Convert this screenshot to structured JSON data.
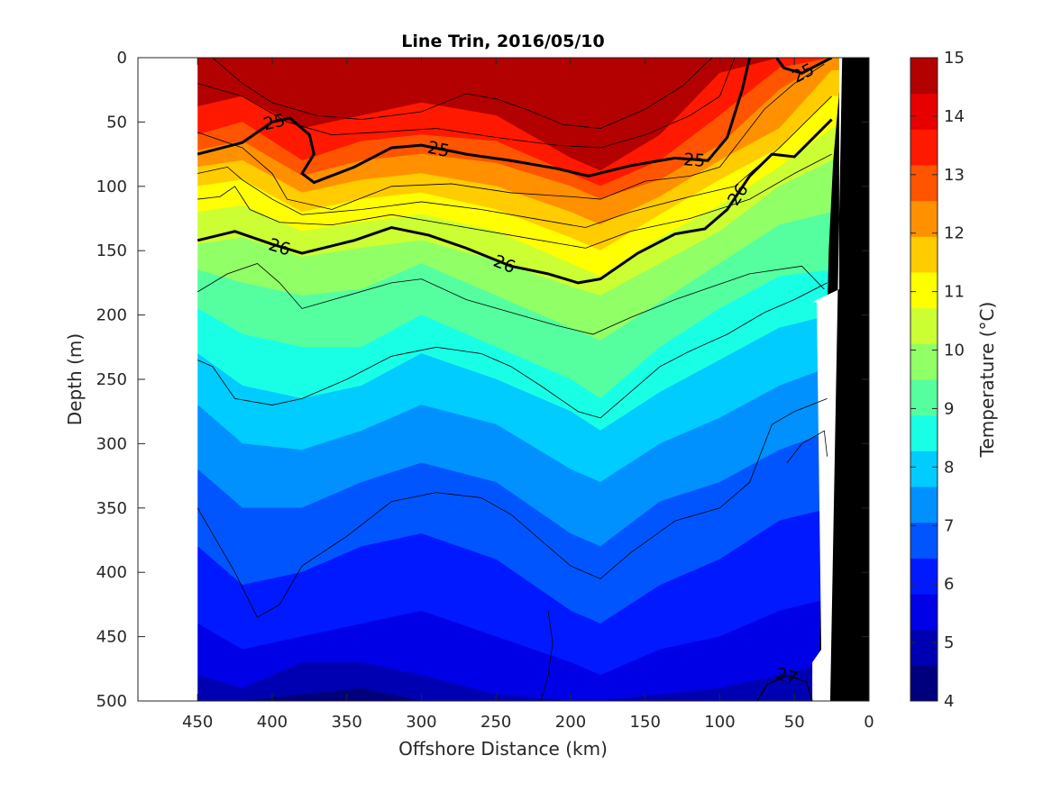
{
  "chart_data": {
    "type": "heatmap",
    "title": "Line Trin, 2016/05/10",
    "xlabel": "Offshore Distance (km)",
    "ylabel": "Depth (m)",
    "xlim": [
      490,
      0
    ],
    "ylim": [
      0,
      500
    ],
    "x_reversed": true,
    "y_reversed": true,
    "xticks": [
      450,
      400,
      350,
      300,
      250,
      200,
      150,
      100,
      50,
      0
    ],
    "yticks": [
      0,
      50,
      100,
      150,
      200,
      250,
      300,
      350,
      400,
      450,
      500
    ],
    "colorbar": {
      "label": "Temperature (°C)",
      "range": [
        4,
        15
      ],
      "ticks": [
        15,
        14,
        13,
        12,
        11,
        10,
        9,
        8,
        7,
        6,
        5,
        4
      ],
      "colors": [
        "#00007f",
        "#0000b3",
        "#0000e6",
        "#0019ff",
        "#0055ff",
        "#0091ff",
        "#00ccff",
        "#19ffe6",
        "#55ff9f",
        "#91ff66",
        "#ccff33",
        "#ffff00",
        "#ffcc00",
        "#ff9100",
        "#ff5500",
        "#ff1900",
        "#e60000",
        "#b30000"
      ]
    },
    "temperature_profiles": {
      "distance_km": [
        450,
        420,
        380,
        340,
        300,
        250,
        200,
        180,
        140,
        100,
        60,
        25
      ],
      "thresholds_c": [
        14,
        13,
        12,
        11.5,
        11,
        10.5,
        10,
        9.5,
        9,
        8.5,
        8,
        7.5,
        7,
        6.5,
        6,
        5.5,
        5,
        4.5
      ],
      "depth_of_isotherm_m": [
        [
          0,
          0,
          0,
          0,
          0,
          0,
          45,
          50,
          0,
          0,
          0,
          0
        ],
        [
          12,
          8,
          25,
          18,
          10,
          15,
          62,
          70,
          25,
          0,
          0,
          0
        ],
        [
          38,
          30,
          55,
          45,
          35,
          45,
          78,
          88,
          60,
          12,
          0,
          0
        ],
        [
          60,
          50,
          80,
          65,
          60,
          65,
          90,
          100,
          80,
          45,
          8,
          0
        ],
        [
          72,
          65,
          92,
          80,
          75,
          82,
          100,
          110,
          95,
          68,
          25,
          0
        ],
        [
          85,
          80,
          105,
          95,
          90,
          100,
          120,
          130,
          108,
          80,
          55,
          10
        ],
        [
          100,
          95,
          120,
          110,
          105,
          118,
          140,
          150,
          122,
          95,
          70,
          30
        ],
        [
          120,
          115,
          135,
          128,
          122,
          135,
          160,
          170,
          140,
          115,
          85,
          55
        ],
        [
          145,
          140,
          155,
          148,
          142,
          158,
          178,
          185,
          160,
          135,
          100,
          80
        ],
        [
          165,
          175,
          185,
          180,
          160,
          185,
          210,
          220,
          190,
          160,
          130,
          120
        ],
        [
          195,
          215,
          225,
          225,
          200,
          225,
          250,
          265,
          225,
          195,
          170,
          165
        ],
        [
          230,
          255,
          265,
          255,
          230,
          250,
          275,
          290,
          260,
          235,
          210,
          200
        ],
        [
          270,
          300,
          305,
          290,
          270,
          285,
          320,
          330,
          300,
          280,
          255,
          240
        ],
        [
          320,
          350,
          350,
          330,
          315,
          330,
          370,
          380,
          345,
          330,
          305,
          290
        ],
        [
          380,
          410,
          400,
          380,
          370,
          390,
          430,
          440,
          410,
          390,
          360,
          350
        ],
        [
          440,
          460,
          450,
          440,
          430,
          450,
          470,
          480,
          460,
          450,
          430,
          420
        ],
        [
          480,
          490,
          470,
          470,
          480,
          495,
          500,
          500,
          495,
          490,
          480,
          470
        ],
        [
          500,
          500,
          495,
          490,
          500,
          500,
          500,
          500,
          500,
          500,
          500,
          500
        ]
      ]
    },
    "density_contours": [
      {
        "label": "25",
        "bold": true,
        "points": [
          [
            450,
            75
          ],
          [
            420,
            66
          ],
          [
            400,
            50
          ],
          [
            388,
            47
          ],
          [
            375,
            60
          ],
          [
            372,
            75
          ],
          [
            380,
            90
          ],
          [
            372,
            97
          ],
          [
            345,
            85
          ],
          [
            320,
            70
          ],
          [
            300,
            68
          ],
          [
            270,
            75
          ],
          [
            240,
            80
          ],
          [
            210,
            86
          ],
          [
            188,
            92
          ],
          [
            160,
            84
          ],
          [
            130,
            78
          ],
          [
            108,
            80
          ],
          [
            95,
            62
          ],
          [
            85,
            25
          ],
          [
            80,
            0
          ]
        ]
      },
      {
        "label": "25",
        "bold": true,
        "points": [
          [
            62,
            0
          ],
          [
            57,
            8
          ],
          [
            45,
            12
          ],
          [
            25,
            0
          ]
        ]
      },
      {
        "label": "26",
        "bold": true,
        "points": [
          [
            450,
            142
          ],
          [
            425,
            135
          ],
          [
            400,
            145
          ],
          [
            380,
            152
          ],
          [
            345,
            142
          ],
          [
            320,
            132
          ],
          [
            295,
            138
          ],
          [
            270,
            148
          ],
          [
            240,
            162
          ],
          [
            215,
            168
          ],
          [
            195,
            175
          ],
          [
            180,
            172
          ],
          [
            155,
            152
          ],
          [
            130,
            137
          ],
          [
            110,
            133
          ],
          [
            95,
            118
          ],
          [
            80,
            92
          ],
          [
            65,
            75
          ],
          [
            50,
            77
          ],
          [
            25,
            48
          ]
        ]
      },
      {
        "label": "27",
        "bold": false,
        "points": [
          [
            75,
            500
          ],
          [
            68,
            487
          ],
          [
            55,
            480
          ],
          [
            42,
            485
          ],
          [
            38,
            500
          ]
        ]
      }
    ],
    "thin_contours": [
      [
        [
          440,
          0
        ],
        [
          420,
          20
        ],
        [
          400,
          35
        ],
        [
          370,
          45
        ],
        [
          340,
          48
        ],
        [
          300,
          42
        ],
        [
          270,
          28
        ],
        [
          250,
          32
        ],
        [
          230,
          40
        ],
        [
          205,
          52
        ],
        [
          180,
          55
        ],
        [
          150,
          40
        ],
        [
          125,
          22
        ],
        [
          110,
          5
        ],
        [
          105,
          0
        ]
      ],
      [
        [
          450,
          20
        ],
        [
          420,
          30
        ],
        [
          390,
          50
        ],
        [
          360,
          60
        ],
        [
          330,
          58
        ],
        [
          290,
          55
        ],
        [
          250,
          62
        ],
        [
          210,
          68
        ],
        [
          180,
          70
        ],
        [
          150,
          60
        ],
        [
          120,
          45
        ],
        [
          100,
          30
        ],
        [
          90,
          0
        ]
      ],
      [
        [
          450,
          58
        ],
        [
          420,
          70
        ],
        [
          400,
          90
        ],
        [
          390,
          110
        ],
        [
          360,
          118
        ],
        [
          320,
          100
        ],
        [
          280,
          98
        ],
        [
          240,
          105
        ],
        [
          200,
          108
        ],
        [
          180,
          110
        ],
        [
          150,
          96
        ],
        [
          120,
          92
        ],
        [
          100,
          85
        ],
        [
          90,
          70
        ],
        [
          70,
          40
        ],
        [
          50,
          20
        ],
        [
          30,
          5
        ]
      ],
      [
        [
          450,
          90
        ],
        [
          430,
          85
        ],
        [
          420,
          95
        ],
        [
          400,
          110
        ],
        [
          380,
          122
        ],
        [
          340,
          118
        ],
        [
          300,
          112
        ],
        [
          260,
          118
        ],
        [
          220,
          126
        ],
        [
          190,
          132
        ],
        [
          160,
          120
        ],
        [
          120,
          108
        ],
        [
          90,
          100
        ],
        [
          60,
          70
        ],
        [
          25,
          30
        ]
      ],
      [
        [
          450,
          110
        ],
        [
          435,
          108
        ],
        [
          425,
          100
        ],
        [
          415,
          118
        ],
        [
          395,
          128
        ],
        [
          360,
          130
        ],
        [
          320,
          122
        ],
        [
          280,
          130
        ],
        [
          230,
          140
        ],
        [
          190,
          148
        ],
        [
          160,
          135
        ],
        [
          120,
          125
        ],
        [
          80,
          110
        ],
        [
          50,
          90
        ],
        [
          25,
          75
        ]
      ],
      [
        [
          450,
          182
        ],
        [
          430,
          168
        ],
        [
          410,
          160
        ],
        [
          395,
          175
        ],
        [
          380,
          195
        ],
        [
          350,
          185
        ],
        [
          320,
          175
        ],
        [
          300,
          172
        ],
        [
          270,
          188
        ],
        [
          240,
          198
        ],
        [
          210,
          208
        ],
        [
          185,
          215
        ],
        [
          160,
          202
        ],
        [
          130,
          188
        ],
        [
          105,
          178
        ],
        [
          80,
          168
        ],
        [
          45,
          162
        ],
        [
          30,
          180
        ]
      ],
      [
        [
          450,
          235
        ],
        [
          440,
          240
        ],
        [
          425,
          265
        ],
        [
          400,
          270
        ],
        [
          380,
          265
        ],
        [
          350,
          250
        ],
        [
          320,
          232
        ],
        [
          290,
          225
        ],
        [
          260,
          230
        ],
        [
          240,
          240
        ],
        [
          220,
          255
        ],
        [
          195,
          275
        ],
        [
          180,
          280
        ],
        [
          160,
          260
        ],
        [
          140,
          240
        ],
        [
          120,
          228
        ],
        [
          95,
          215
        ],
        [
          70,
          198
        ],
        [
          50,
          188
        ],
        [
          28,
          175
        ]
      ],
      [
        [
          450,
          350
        ],
        [
          440,
          370
        ],
        [
          425,
          400
        ],
        [
          410,
          435
        ],
        [
          395,
          425
        ],
        [
          380,
          395
        ],
        [
          350,
          372
        ],
        [
          320,
          345
        ],
        [
          290,
          338
        ],
        [
          260,
          342
        ],
        [
          240,
          355
        ],
        [
          220,
          375
        ],
        [
          200,
          395
        ],
        [
          180,
          405
        ],
        [
          160,
          385
        ],
        [
          130,
          360
        ],
        [
          100,
          350
        ],
        [
          80,
          330
        ],
        [
          65,
          285
        ],
        [
          50,
          275
        ],
        [
          28,
          265
        ]
      ],
      [
        [
          220,
          500
        ],
        [
          215,
          480
        ],
        [
          212,
          455
        ],
        [
          215,
          430
        ]
      ],
      [
        [
          55,
          315
        ],
        [
          45,
          300
        ],
        [
          30,
          290
        ],
        [
          28,
          310
        ]
      ]
    ],
    "masked_regions": [
      {
        "name": "no-data",
        "x_range": [
          490,
          450
        ]
      },
      {
        "name": "bottom",
        "polygon": [
          [
            20,
            0
          ],
          [
            18,
            0
          ],
          [
            24,
            80
          ],
          [
            27,
            150
          ],
          [
            30,
            300
          ],
          [
            34,
            500
          ],
          [
            0,
            500
          ],
          [
            0,
            0
          ]
        ]
      }
    ]
  }
}
